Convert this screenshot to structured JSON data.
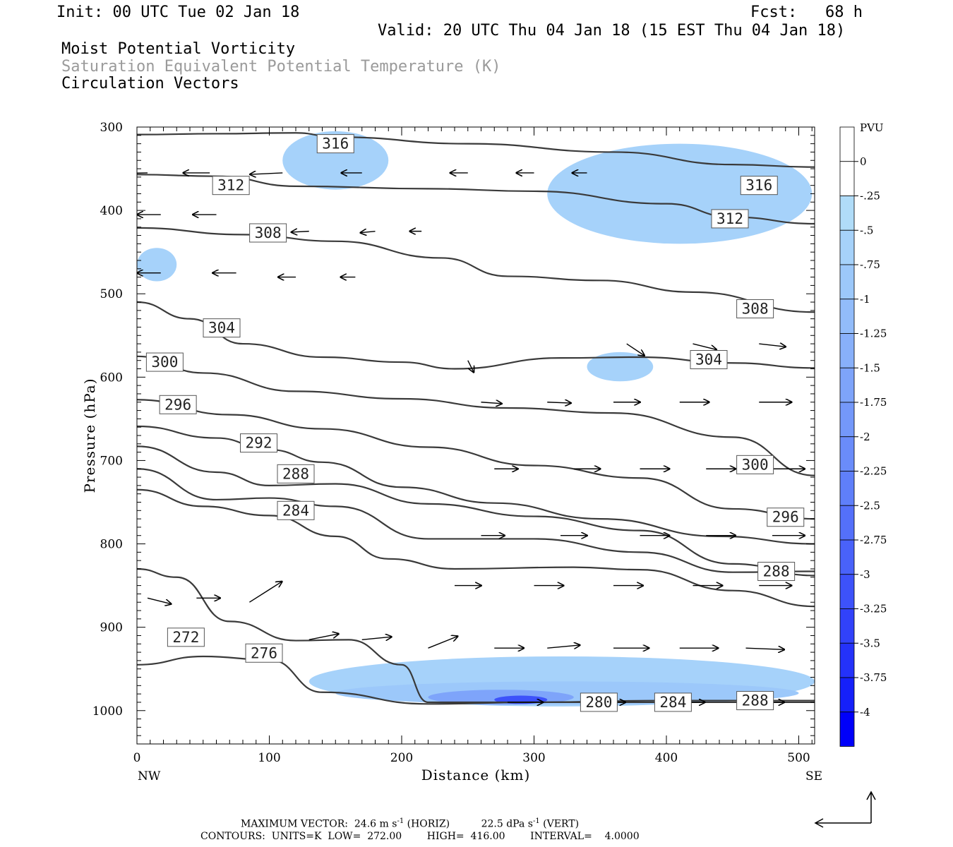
{
  "header": {
    "init": "Init: 00 UTC Tue 02 Jan 18",
    "fcst": "Fcst:   68 h",
    "valid": "Valid: 20 UTC Thu 04 Jan 18 (15 EST Thu 04 Jan 18)",
    "field1": "Moist Potential Vorticity",
    "field2": "Saturation Equivalent Potential Temperature (K)",
    "field3": "Circulation Vectors"
  },
  "footer": {
    "max_vector_label": "MAXIMUM VECTOR:",
    "max_vector_horiz": "24.6 m s",
    "horiz_tag": "(HORIZ)",
    "max_vector_vert": "22.5 dPa s",
    "vert_tag": "(VERT)",
    "contours": "CONTOURS:  UNITS=K  LOW=  272.00        HIGH=  416.00        INTERVAL=    4.0000"
  },
  "chart_data": {
    "type": "contour",
    "xlabel": "Distance (km)",
    "ylabel": "Pressure (hPa)",
    "xlim": [
      0,
      512
    ],
    "ylim": [
      1040,
      300
    ],
    "x_ticks": [
      0,
      100,
      200,
      300,
      400,
      500
    ],
    "y_ticks": [
      300,
      400,
      500,
      600,
      700,
      800,
      900,
      1000
    ],
    "x_end_labels": {
      "left": "NW",
      "right": "SE"
    },
    "colorbar": {
      "title": "PVU",
      "levels": [
        "0",
        "-.25",
        "-.5",
        "-.75",
        "-1",
        "-1.25",
        "-1.5",
        "-1.75",
        "-2",
        "-2.25",
        "-2.5",
        "-2.75",
        "-3",
        "-3.25",
        "-3.5",
        "-3.75",
        "-4"
      ],
      "colors": [
        "#ffffff",
        "#ffffff",
        "#b0dcf8",
        "#a6d2fa",
        "#9cc8fa",
        "#92bcfa",
        "#88b0fa",
        "#7ea4fa",
        "#7498fa",
        "#6a8cfa",
        "#5f7ffa",
        "#5470fa",
        "#4962fa",
        "#3d52fa",
        "#3142fa",
        "#2432fa",
        "#1520fa",
        "#0000fa"
      ]
    },
    "contour_labels": [
      {
        "value": "316",
        "x": 150,
        "p": 320
      },
      {
        "value": "312",
        "x": 71,
        "p": 370
      },
      {
        "value": "308",
        "x": 99,
        "p": 427
      },
      {
        "value": "304",
        "x": 64,
        "p": 541
      },
      {
        "value": "300",
        "x": 21,
        "p": 582
      },
      {
        "value": "296",
        "x": 31,
        "p": 633
      },
      {
        "value": "292",
        "x": 92,
        "p": 679
      },
      {
        "value": "288",
        "x": 120,
        "p": 716
      },
      {
        "value": "284",
        "x": 120,
        "p": 760
      },
      {
        "value": "272",
        "x": 37,
        "p": 912
      },
      {
        "value": "276",
        "x": 96,
        "p": 931
      },
      {
        "value": "280",
        "x": 349,
        "p": 990
      },
      {
        "value": "284",
        "x": 405,
        "p": 990
      },
      {
        "value": "288",
        "x": 467,
        "p": 988
      },
      {
        "value": "316",
        "x": 470,
        "p": 370
      },
      {
        "value": "312",
        "x": 448,
        "p": 410
      },
      {
        "value": "308",
        "x": 467,
        "p": 518
      },
      {
        "value": "304",
        "x": 432,
        "p": 579
      },
      {
        "value": "300",
        "x": 467,
        "p": 705
      },
      {
        "value": "296",
        "x": 490,
        "p": 768
      },
      {
        "value": "288",
        "x": 483,
        "p": 833
      }
    ],
    "theta_e_lines": [
      {
        "points": [
          [
            0,
            309
          ],
          [
            60,
            308
          ],
          [
            120,
            307
          ],
          [
            150,
            312
          ],
          [
            250,
            320
          ],
          [
            360,
            330
          ],
          [
            450,
            345
          ],
          [
            512,
            348
          ]
        ]
      },
      {
        "points": [
          [
            0,
            357
          ],
          [
            60,
            359
          ],
          [
            120,
            371
          ],
          [
            220,
            374
          ],
          [
            300,
            377
          ],
          [
            400,
            392
          ],
          [
            450,
            408
          ],
          [
            512,
            416
          ]
        ]
      },
      {
        "points": [
          [
            0,
            421
          ],
          [
            80,
            429
          ],
          [
            150,
            437
          ],
          [
            230,
            457
          ],
          [
            280,
            479
          ],
          [
            350,
            484
          ],
          [
            420,
            498
          ],
          [
            512,
            522
          ]
        ]
      },
      {
        "points": [
          [
            0,
            510
          ],
          [
            40,
            530
          ],
          [
            80,
            560
          ],
          [
            140,
            576
          ],
          [
            200,
            582
          ],
          [
            240,
            590
          ],
          [
            320,
            577
          ],
          [
            380,
            576
          ],
          [
            450,
            583
          ],
          [
            512,
            589
          ]
        ]
      },
      {
        "points": [
          [
            0,
            575
          ],
          [
            50,
            595
          ],
          [
            120,
            617
          ],
          [
            200,
            626
          ],
          [
            280,
            637
          ],
          [
            360,
            643
          ],
          [
            450,
            672
          ],
          [
            512,
            718
          ]
        ]
      },
      {
        "points": [
          [
            0,
            627
          ],
          [
            70,
            645
          ],
          [
            140,
            662
          ],
          [
            220,
            684
          ],
          [
            300,
            706
          ],
          [
            380,
            721
          ],
          [
            450,
            758
          ],
          [
            512,
            770
          ]
        ]
      },
      {
        "points": [
          [
            0,
            659
          ],
          [
            60,
            673
          ],
          [
            100,
            687
          ],
          [
            140,
            702
          ],
          [
            200,
            732
          ],
          [
            270,
            751
          ],
          [
            350,
            770
          ],
          [
            440,
            791
          ],
          [
            512,
            800
          ]
        ]
      },
      {
        "points": [
          [
            0,
            683
          ],
          [
            60,
            714
          ],
          [
            100,
            730
          ],
          [
            150,
            728
          ],
          [
            220,
            752
          ],
          [
            300,
            767
          ],
          [
            380,
            784
          ],
          [
            450,
            824
          ],
          [
            512,
            838
          ]
        ]
      },
      {
        "points": [
          [
            0,
            710
          ],
          [
            60,
            747
          ],
          [
            100,
            745
          ],
          [
            150,
            755
          ],
          [
            220,
            794
          ],
          [
            300,
            794
          ],
          [
            380,
            810
          ],
          [
            450,
            834
          ],
          [
            512,
            833
          ]
        ]
      },
      {
        "points": [
          [
            0,
            735
          ],
          [
            50,
            755
          ],
          [
            100,
            766
          ],
          [
            150,
            791
          ],
          [
            190,
            818
          ],
          [
            240,
            830
          ],
          [
            330,
            828
          ],
          [
            380,
            831
          ],
          [
            450,
            856
          ],
          [
            512,
            875
          ]
        ]
      },
      {
        "points": [
          [
            0,
            830
          ],
          [
            30,
            840
          ],
          [
            70,
            893
          ],
          [
            120,
            916
          ],
          [
            160,
            915
          ],
          [
            200,
            945
          ],
          [
            220,
            990
          ],
          [
            300,
            990
          ],
          [
            400,
            990
          ],
          [
            512,
            990
          ]
        ]
      },
      {
        "points": [
          [
            0,
            945
          ],
          [
            50,
            935
          ],
          [
            100,
            939
          ],
          [
            140,
            978
          ],
          [
            220,
            992
          ],
          [
            300,
            990
          ],
          [
            400,
            988
          ],
          [
            512,
            988
          ]
        ]
      }
    ],
    "pv_shading": [
      {
        "level": "-.5",
        "x": [
          110,
          190
        ],
        "p": [
          305,
          375
        ]
      },
      {
        "level": "-.5",
        "x": [
          310,
          510
        ],
        "p": [
          320,
          440
        ]
      },
      {
        "level": "-.5",
        "x": [
          0,
          30
        ],
        "p": [
          445,
          485
        ]
      },
      {
        "level": "-.5",
        "x": [
          340,
          390
        ],
        "p": [
          570,
          605
        ]
      },
      {
        "level": "-.5",
        "x": [
          130,
          512
        ],
        "p": [
          935,
          995
        ]
      },
      {
        "level": "-.75",
        "x": [
          150,
          500
        ],
        "p": [
          965,
          993
        ]
      },
      {
        "level": "-1.5",
        "x": [
          220,
          330
        ],
        "p": [
          975,
          993
        ]
      },
      {
        "level": "-3",
        "x": [
          270,
          310
        ],
        "p": [
          982,
          992
        ]
      }
    ],
    "vectors": [
      {
        "p": 355,
        "x": 8,
        "u": -1.0,
        "w": 0.02
      },
      {
        "p": 355,
        "x": 55,
        "u": -0.9,
        "w": 0.0
      },
      {
        "p": 355,
        "x": 110,
        "u": -1.1,
        "w": 0.05
      },
      {
        "p": 355,
        "x": 170,
        "u": -0.7,
        "w": 0.0
      },
      {
        "p": 355,
        "x": 250,
        "u": -0.6,
        "w": 0.0
      },
      {
        "p": 355,
        "x": 300,
        "u": -0.6,
        "w": 0.0
      },
      {
        "p": 355,
        "x": 340,
        "u": -0.5,
        "w": 0.0
      },
      {
        "p": 405,
        "x": 18,
        "u": -0.8,
        "w": 0.0
      },
      {
        "p": 405,
        "x": 60,
        "u": -0.8,
        "w": 0.0
      },
      {
        "p": 425,
        "x": 130,
        "u": -0.6,
        "w": 0.03
      },
      {
        "p": 425,
        "x": 180,
        "u": -0.5,
        "w": 0.05
      },
      {
        "p": 425,
        "x": 215,
        "u": -0.4,
        "w": 0.0
      },
      {
        "p": 475,
        "x": 18,
        "u": -0.8,
        "w": 0.0
      },
      {
        "p": 475,
        "x": 75,
        "u": -0.8,
        "w": 0.0
      },
      {
        "p": 480,
        "x": 120,
        "u": -0.6,
        "w": 0.0
      },
      {
        "p": 480,
        "x": 165,
        "u": -0.5,
        "w": 0.0
      },
      {
        "p": 580,
        "x": 250,
        "u": 0.2,
        "w": 0.4
      },
      {
        "p": 560,
        "x": 370,
        "u": 0.6,
        "w": 0.4
      },
      {
        "p": 560,
        "x": 420,
        "u": 0.8,
        "w": 0.2
      },
      {
        "p": 560,
        "x": 470,
        "u": 0.9,
        "w": 0.1
      },
      {
        "p": 630,
        "x": 260,
        "u": 0.7,
        "w": 0.05
      },
      {
        "p": 630,
        "x": 310,
        "u": 0.8,
        "w": 0.03
      },
      {
        "p": 630,
        "x": 360,
        "u": 0.9,
        "w": 0.0
      },
      {
        "p": 630,
        "x": 410,
        "u": 1.0,
        "w": 0.0
      },
      {
        "p": 630,
        "x": 470,
        "u": 1.1,
        "w": 0.0
      },
      {
        "p": 710,
        "x": 270,
        "u": 0.8,
        "w": 0.0
      },
      {
        "p": 710,
        "x": 330,
        "u": 0.9,
        "w": 0.0
      },
      {
        "p": 710,
        "x": 380,
        "u": 1.0,
        "w": 0.0
      },
      {
        "p": 710,
        "x": 430,
        "u": 1.0,
        "w": 0.0
      },
      {
        "p": 710,
        "x": 480,
        "u": 1.1,
        "w": 0.0
      },
      {
        "p": 790,
        "x": 260,
        "u": 0.8,
        "w": 0.0
      },
      {
        "p": 790,
        "x": 320,
        "u": 0.9,
        "w": 0.0
      },
      {
        "p": 790,
        "x": 380,
        "u": 1.0,
        "w": 0.0
      },
      {
        "p": 790,
        "x": 430,
        "u": 1.0,
        "w": 0.0
      },
      {
        "p": 790,
        "x": 480,
        "u": 1.1,
        "w": 0.0
      },
      {
        "p": 850,
        "x": 240,
        "u": 0.9,
        "w": 0.0
      },
      {
        "p": 850,
        "x": 300,
        "u": 1.0,
        "w": 0.0
      },
      {
        "p": 850,
        "x": 360,
        "u": 1.0,
        "w": 0.0
      },
      {
        "p": 850,
        "x": 420,
        "u": 1.0,
        "w": 0.0
      },
      {
        "p": 850,
        "x": 470,
        "u": 1.1,
        "w": 0.0
      },
      {
        "p": 865,
        "x": 8,
        "u": 0.8,
        "w": 0.2
      },
      {
        "p": 865,
        "x": 45,
        "u": 0.8,
        "w": 0.0
      },
      {
        "p": 870,
        "x": 85,
        "u": 1.1,
        "w": -0.7
      },
      {
        "p": 915,
        "x": 130,
        "u": 1.0,
        "w": -0.2
      },
      {
        "p": 915,
        "x": 170,
        "u": 1.0,
        "w": -0.1
      },
      {
        "p": 925,
        "x": 220,
        "u": 1.0,
        "w": -0.4
      },
      {
        "p": 925,
        "x": 270,
        "u": 1.0,
        "w": 0.0
      },
      {
        "p": 925,
        "x": 310,
        "u": 1.1,
        "w": -0.1
      },
      {
        "p": 925,
        "x": 360,
        "u": 1.2,
        "w": 0.0
      },
      {
        "p": 925,
        "x": 410,
        "u": 1.3,
        "w": 0.0
      },
      {
        "p": 925,
        "x": 460,
        "u": 1.3,
        "w": 0.05
      },
      {
        "p": 990,
        "x": 280,
        "u": 1.2,
        "w": 0.0
      },
      {
        "p": 990,
        "x": 340,
        "u": 1.3,
        "w": 0.0
      },
      {
        "p": 990,
        "x": 400,
        "u": 1.3,
        "w": 0.0
      },
      {
        "p": 990,
        "x": 460,
        "u": 1.3,
        "w": 0.0
      }
    ]
  }
}
